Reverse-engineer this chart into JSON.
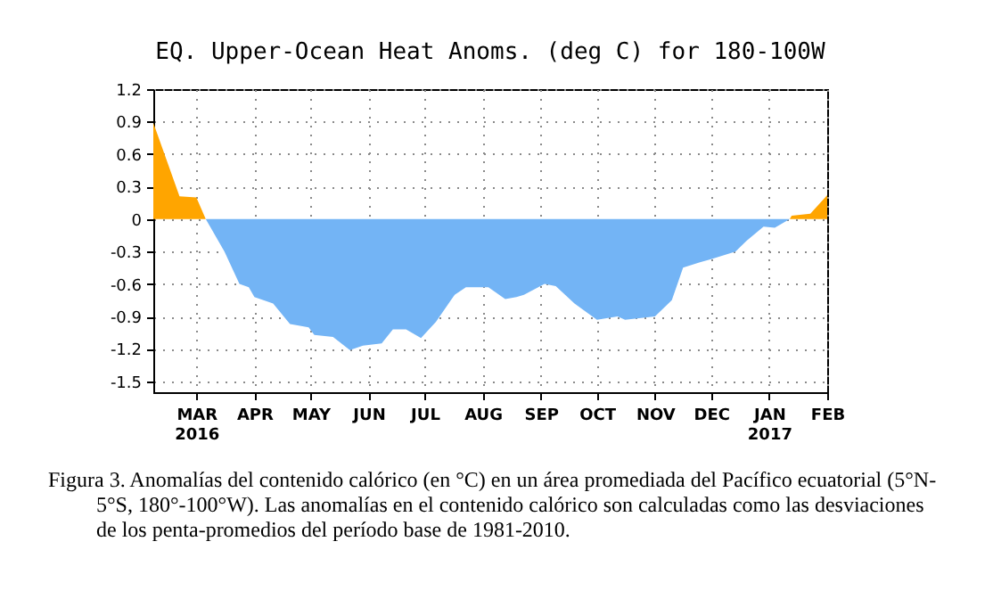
{
  "chart_data": {
    "type": "area",
    "title": "EQ. Upper-Ocean Heat Anoms. (deg C) for 180-100W",
    "xlim": [
      "2016-02-07",
      "2017-02-01"
    ],
    "xticks": [
      {
        "value": "2016-03-01",
        "label": "MAR\n2016"
      },
      {
        "value": "2016-04-01",
        "label": "APR"
      },
      {
        "value": "2016-05-01",
        "label": "MAY"
      },
      {
        "value": "2016-06-01",
        "label": "JUN"
      },
      {
        "value": "2016-07-01",
        "label": "JUL"
      },
      {
        "value": "2016-08-01",
        "label": "AUG"
      },
      {
        "value": "2016-09-01",
        "label": "SEP"
      },
      {
        "value": "2016-10-01",
        "label": "OCT"
      },
      {
        "value": "2016-11-01",
        "label": "NOV"
      },
      {
        "value": "2016-12-01",
        "label": "DEC"
      },
      {
        "value": "2017-01-01",
        "label": "JAN\n2017"
      },
      {
        "value": "2017-02-01",
        "label": "FEB"
      }
    ],
    "ylim": [
      -1.6,
      1.2
    ],
    "yticks": [
      -1.5,
      -1.2,
      -0.9,
      -0.6,
      -0.3,
      0,
      0.3,
      0.6,
      0.9,
      1.2
    ],
    "grid": true,
    "series": [
      {
        "color": "#ffa500",
        "x": [
          "2016-02-07",
          "2016-02-21",
          "2016-03-01",
          "2016-03-06"
        ],
        "values": [
          0.89,
          0.21,
          0.2,
          0
        ]
      },
      {
        "color": "#73b4f5",
        "x": [
          "2016-03-06",
          "2016-03-16",
          "2016-03-24",
          "2016-03-29",
          "2016-04-01",
          "2016-04-11",
          "2016-04-20",
          "2016-04-30",
          "2016-05-03",
          "2016-05-13",
          "2016-05-22",
          "2016-05-29",
          "2016-06-08",
          "2016-06-14",
          "2016-06-21",
          "2016-06-29",
          "2016-07-07",
          "2016-07-17",
          "2016-07-23",
          "2016-08-04",
          "2016-08-13",
          "2016-08-19",
          "2016-08-23",
          "2016-09-03",
          "2016-09-09",
          "2016-09-19",
          "2016-10-01",
          "2016-10-12",
          "2016-10-16",
          "2016-11-01",
          "2016-11-10",
          "2016-11-16",
          "2016-11-25",
          "2016-12-01",
          "2016-12-14",
          "2016-12-20",
          "2016-12-29",
          "2017-01-04",
          "2017-01-12"
        ],
        "values": [
          0,
          -0.3,
          -0.6,
          -0.63,
          -0.72,
          -0.78,
          -0.97,
          -1.0,
          -1.07,
          -1.09,
          -1.21,
          -1.17,
          -1.15,
          -1.02,
          -1.02,
          -1.1,
          -0.95,
          -0.7,
          -0.63,
          -0.63,
          -0.74,
          -0.72,
          -0.7,
          -0.6,
          -0.62,
          -0.78,
          -0.93,
          -0.9,
          -0.93,
          -0.9,
          -0.75,
          -0.45,
          -0.4,
          -0.37,
          -0.3,
          -0.2,
          -0.07,
          -0.08,
          0
        ]
      },
      {
        "color": "#ffa500",
        "x": [
          "2017-01-12",
          "2017-01-13",
          "2017-01-23",
          "2017-02-01"
        ],
        "values": [
          0,
          0.03,
          0.05,
          0.22
        ]
      }
    ],
    "annotations": [
      "Figura 3. Anomalías del contenido calórico (en °C) en un área promediada del Pacífico ecuatorial (5°N-5°S, 180°-100°W). Las anomalías en el contenido calórico son calculadas como las desviaciones de los penta-promedios del período base de 1981-2010."
    ]
  }
}
